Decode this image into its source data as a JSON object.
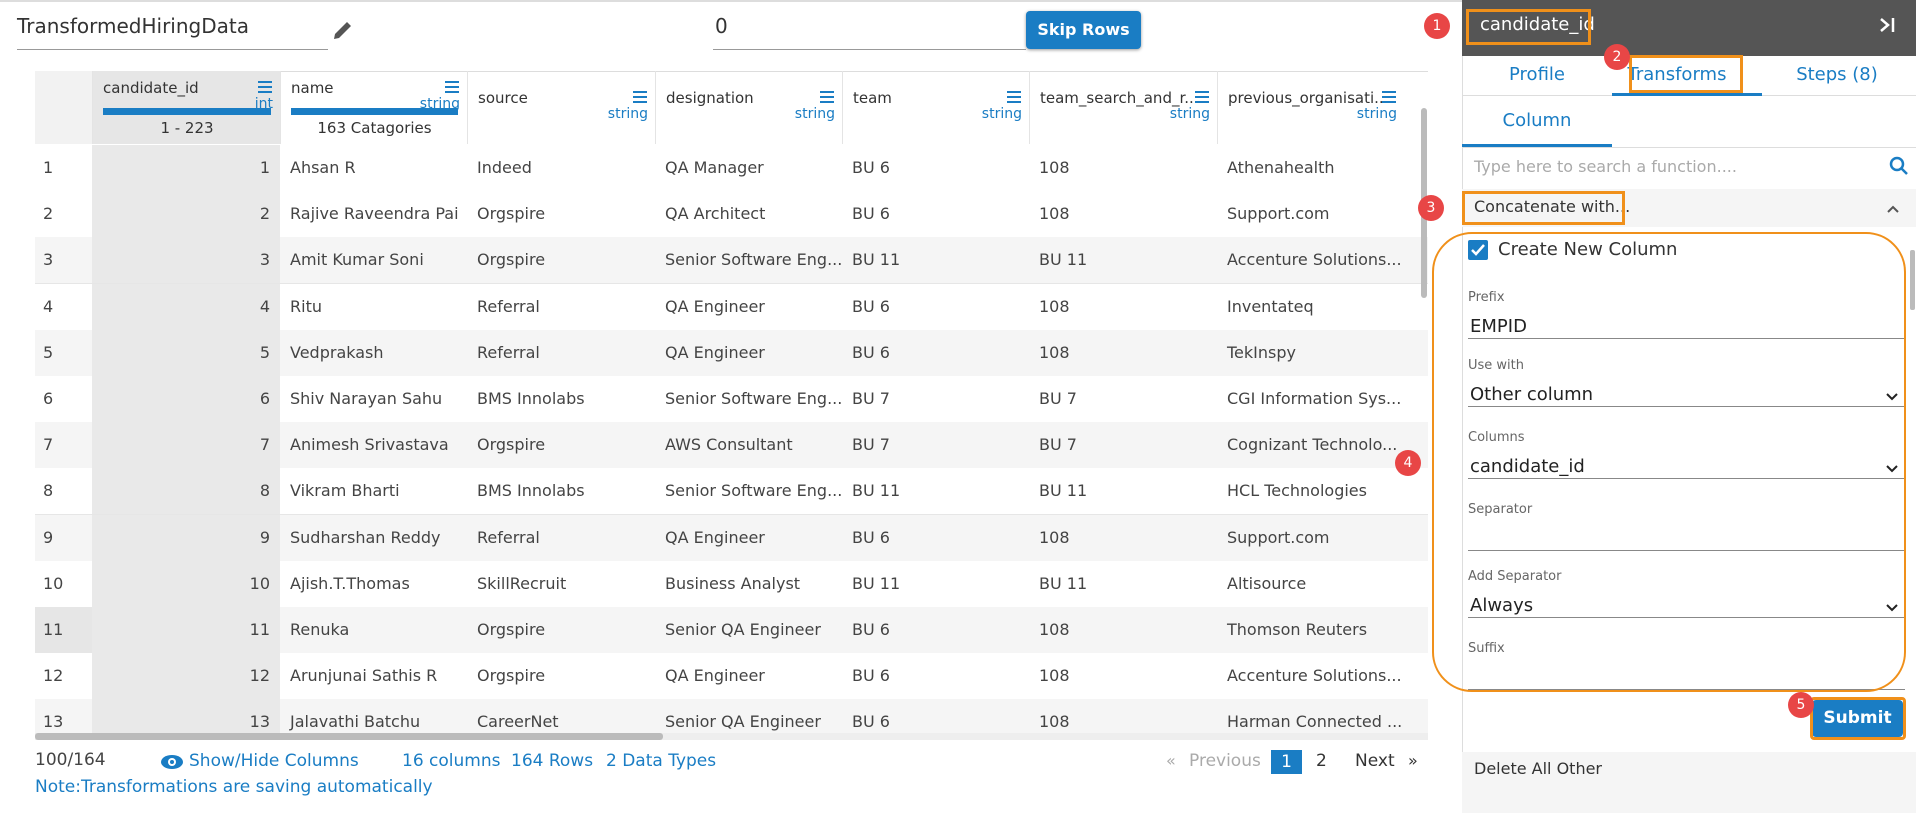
{
  "header": {
    "dataset_name": "TransformedHiringData",
    "skip_value": "0",
    "skip_button": "Skip Rows"
  },
  "table": {
    "columns": [
      {
        "name": "candidate_id",
        "type": "int",
        "summary": "1 - 223"
      },
      {
        "name": "name",
        "type": "string",
        "summary": "163 Catagories"
      },
      {
        "name": "source",
        "type": "string"
      },
      {
        "name": "designation",
        "type": "string"
      },
      {
        "name": "team",
        "type": "string"
      },
      {
        "name": "team_search_and_r...",
        "type": "string"
      },
      {
        "name": "previous_organisati...",
        "type": "string"
      }
    ],
    "rows": [
      [
        1,
        1,
        "Ahsan R",
        "Indeed",
        "QA Manager",
        "BU 6",
        "108",
        "Athenahealth"
      ],
      [
        2,
        2,
        "Rajive Raveendra Pai",
        "Orgspire",
        "QA Architect",
        "BU 6",
        "108",
        "Support.com"
      ],
      [
        3,
        3,
        "Amit Kumar Soni",
        "Orgspire",
        "Senior Software Eng...",
        "BU 11",
        "BU 11",
        "Accenture Solutions..."
      ],
      [
        4,
        4,
        "Ritu",
        "Referral",
        "QA Engineer",
        "BU 6",
        "108",
        "Inventateq"
      ],
      [
        5,
        5,
        "Vedprakash",
        "Referral",
        "QA Engineer",
        "BU 6",
        "108",
        "TekInspy"
      ],
      [
        6,
        6,
        "Shiv Narayan Sahu",
        "BMS Innolabs",
        "Senior Software Eng...",
        "BU 7",
        "BU 7",
        "CGI Information Sys..."
      ],
      [
        7,
        7,
        "Animesh Srivastava",
        "Orgspire",
        "AWS Consultant",
        "BU 7",
        "BU 7",
        "Cognizant Technolo..."
      ],
      [
        8,
        8,
        "Vikram Bharti",
        "BMS Innolabs",
        "Senior Software Eng...",
        "BU 11",
        "BU 11",
        "HCL Technologies"
      ],
      [
        9,
        9,
        "Sudharshan Reddy",
        "Referral",
        "QA Engineer",
        "BU 6",
        "108",
        "Support.com"
      ],
      [
        10,
        10,
        "Ajish.T.Thomas",
        "SkillRecruit",
        "Business Analyst",
        "BU 11",
        "BU 11",
        "Altisource"
      ],
      [
        11,
        11,
        "Renuka",
        "Orgspire",
        "Senior QA Engineer",
        "BU 6",
        "108",
        "Thomson Reuters"
      ],
      [
        12,
        12,
        "Arunjunai Sathis R",
        "Orgspire",
        "QA Engineer",
        "BU 6",
        "108",
        "Accenture Solutions..."
      ],
      [
        13,
        13,
        "Jalavathi Batchu",
        "CareerNet",
        "Senior QA Engineer",
        "BU 6",
        "108",
        "Harman Connected ..."
      ]
    ]
  },
  "footer": {
    "row_range": "100/164",
    "show_hide": "Show/Hide Columns",
    "columns_count": "16 columns",
    "rows_count": "164 Rows",
    "data_types": "2 Data Types",
    "pagination": {
      "first": "«",
      "previous": "Previous",
      "pages": [
        "1",
        "2"
      ],
      "next": "Next",
      "last": "»"
    },
    "note": "Note:Transformations are saving automatically"
  },
  "panel": {
    "title": "candidate_id",
    "tabs": [
      "Profile",
      "Transforms",
      "Steps (8)"
    ],
    "subtab": "Column",
    "search_placeholder": "Type here to search a function....",
    "section": "Concatenate with...",
    "checkbox": "Create New Column",
    "fields": [
      {
        "label": "Prefix",
        "value": "EMPID"
      },
      {
        "label": "Use with",
        "value": "Other column",
        "dropdown": true
      },
      {
        "label": "Columns",
        "value": "candidate_id",
        "dropdown": true
      },
      {
        "label": "Separator"
      },
      {
        "label": "Add Separator",
        "value": "Always",
        "dropdown": true
      },
      {
        "label": "Suffix"
      }
    ],
    "submit": "Submit",
    "next_section": "Delete All Other"
  },
  "callouts": [
    "1",
    "2",
    "3",
    "4",
    "5"
  ]
}
